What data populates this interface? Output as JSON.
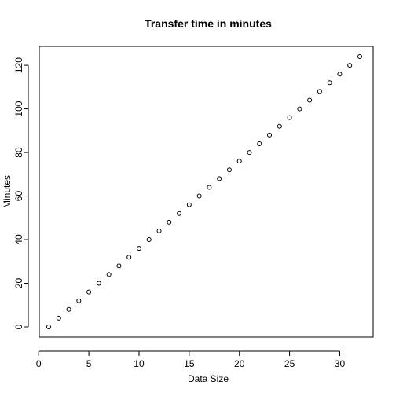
{
  "chart_data": {
    "type": "scatter",
    "title": "Transfer time in minutes",
    "xlabel": "Data Size",
    "ylabel": "Minutes",
    "xlim": [
      1,
      32
    ],
    "ylim": [
      0,
      124
    ],
    "x_ticks": [
      0,
      5,
      10,
      15,
      20,
      25,
      30
    ],
    "y_ticks": [
      0,
      20,
      40,
      60,
      80,
      100,
      120
    ],
    "grid": false,
    "marker": "open-circle",
    "marker_color": "#000000",
    "series": [
      {
        "x": [
          1,
          2,
          3,
          4,
          5,
          6,
          7,
          8,
          9,
          10,
          11,
          12,
          13,
          14,
          15,
          16,
          17,
          18,
          19,
          20,
          21,
          22,
          23,
          24,
          25,
          26,
          27,
          28,
          29,
          30,
          31,
          32
        ],
        "y": [
          0,
          4,
          8,
          12,
          16,
          20,
          24,
          28,
          32,
          36,
          40,
          44,
          48,
          52,
          56,
          60,
          64,
          68,
          72,
          76,
          80,
          84,
          88,
          92,
          96,
          100,
          104,
          108,
          112,
          116,
          120,
          124
        ]
      }
    ]
  }
}
